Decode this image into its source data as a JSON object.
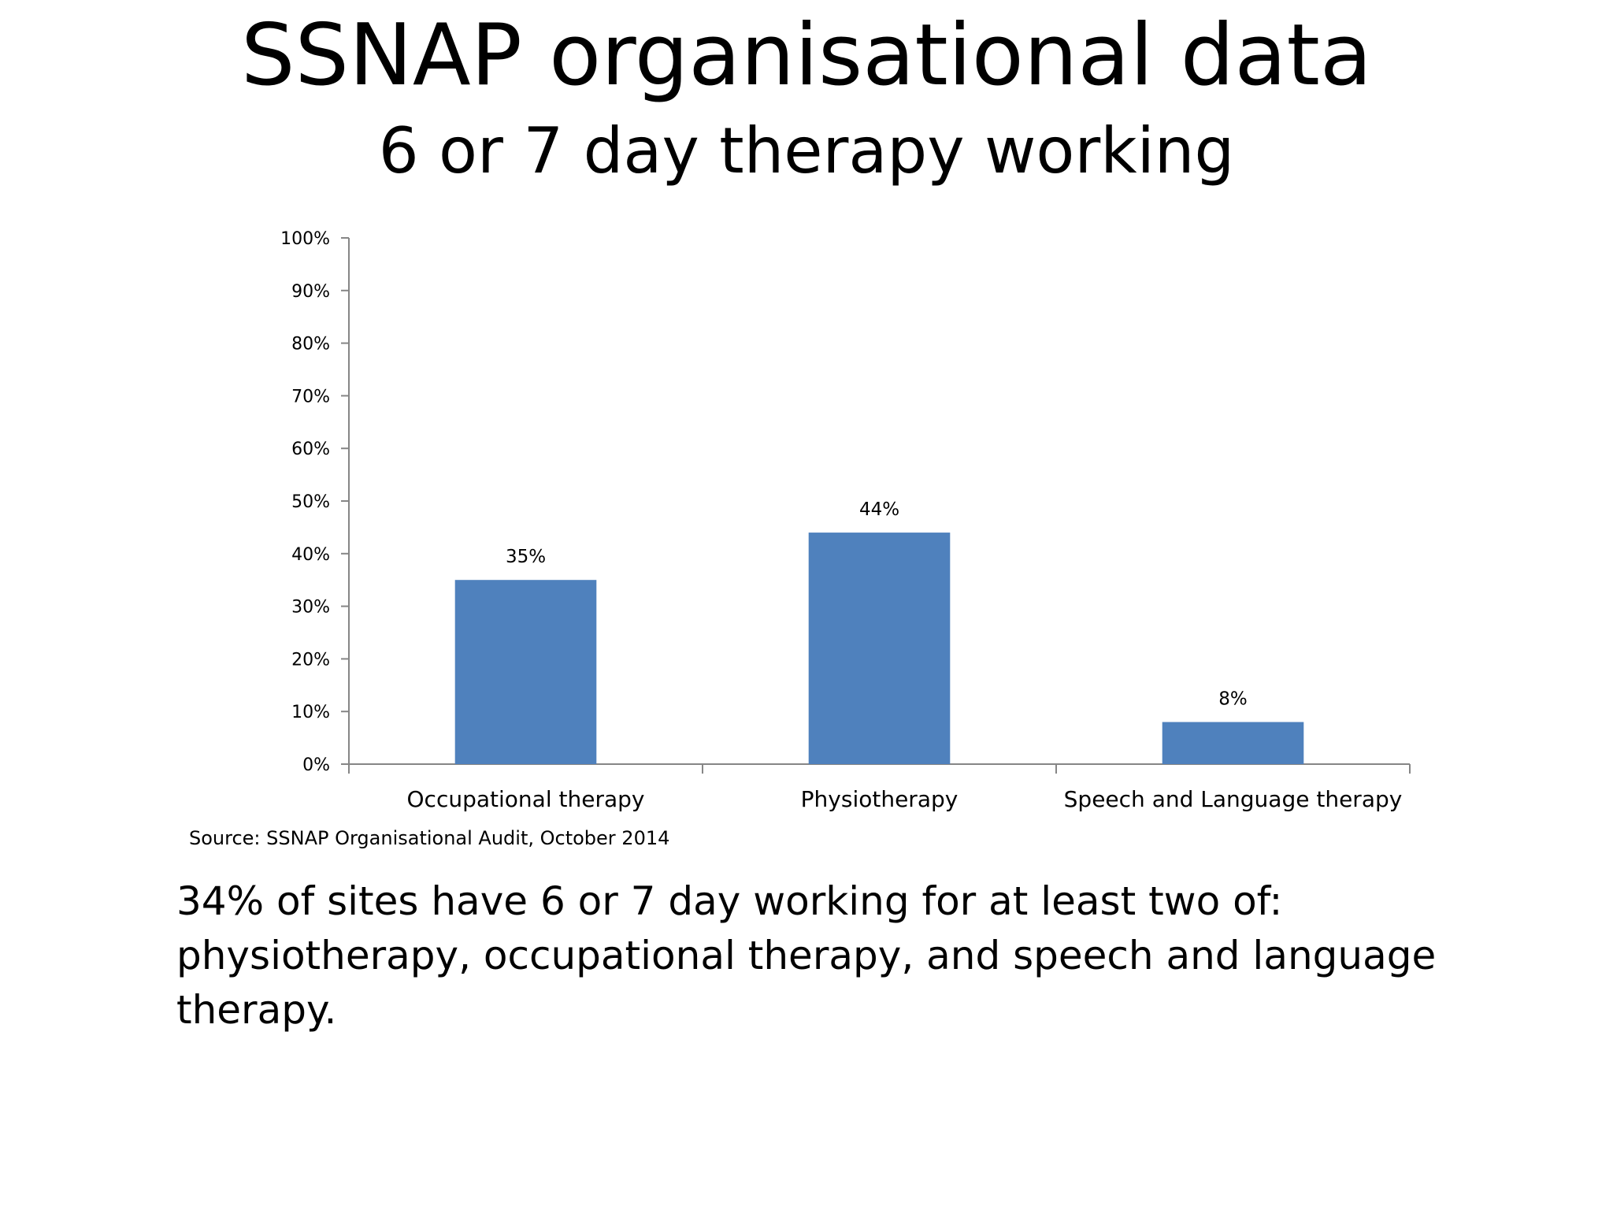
{
  "slide": {
    "title": "SSNAP organisational data",
    "subtitle": "6 or 7 day therapy working",
    "source": "Source: SSNAP Organisational Audit, October 2014",
    "body": "34% of sites have 6 or 7 day working for at least two of: physiotherapy, occupational therapy, and speech and language therapy."
  },
  "chart_data": {
    "type": "bar",
    "categories": [
      "Occupational therapy",
      "Physiotherapy",
      "Speech and Language therapy"
    ],
    "values": [
      35,
      44,
      8
    ],
    "value_labels": [
      "35%",
      "44%",
      "8%"
    ],
    "y_ticks": [
      "0%",
      "10%",
      "20%",
      "30%",
      "40%",
      "50%",
      "60%",
      "70%",
      "80%",
      "90%",
      "100%"
    ],
    "ylim": [
      0,
      100
    ],
    "grid": false,
    "legend": "none",
    "bar_color": "#4F81BD",
    "axis_color": "#868686"
  }
}
